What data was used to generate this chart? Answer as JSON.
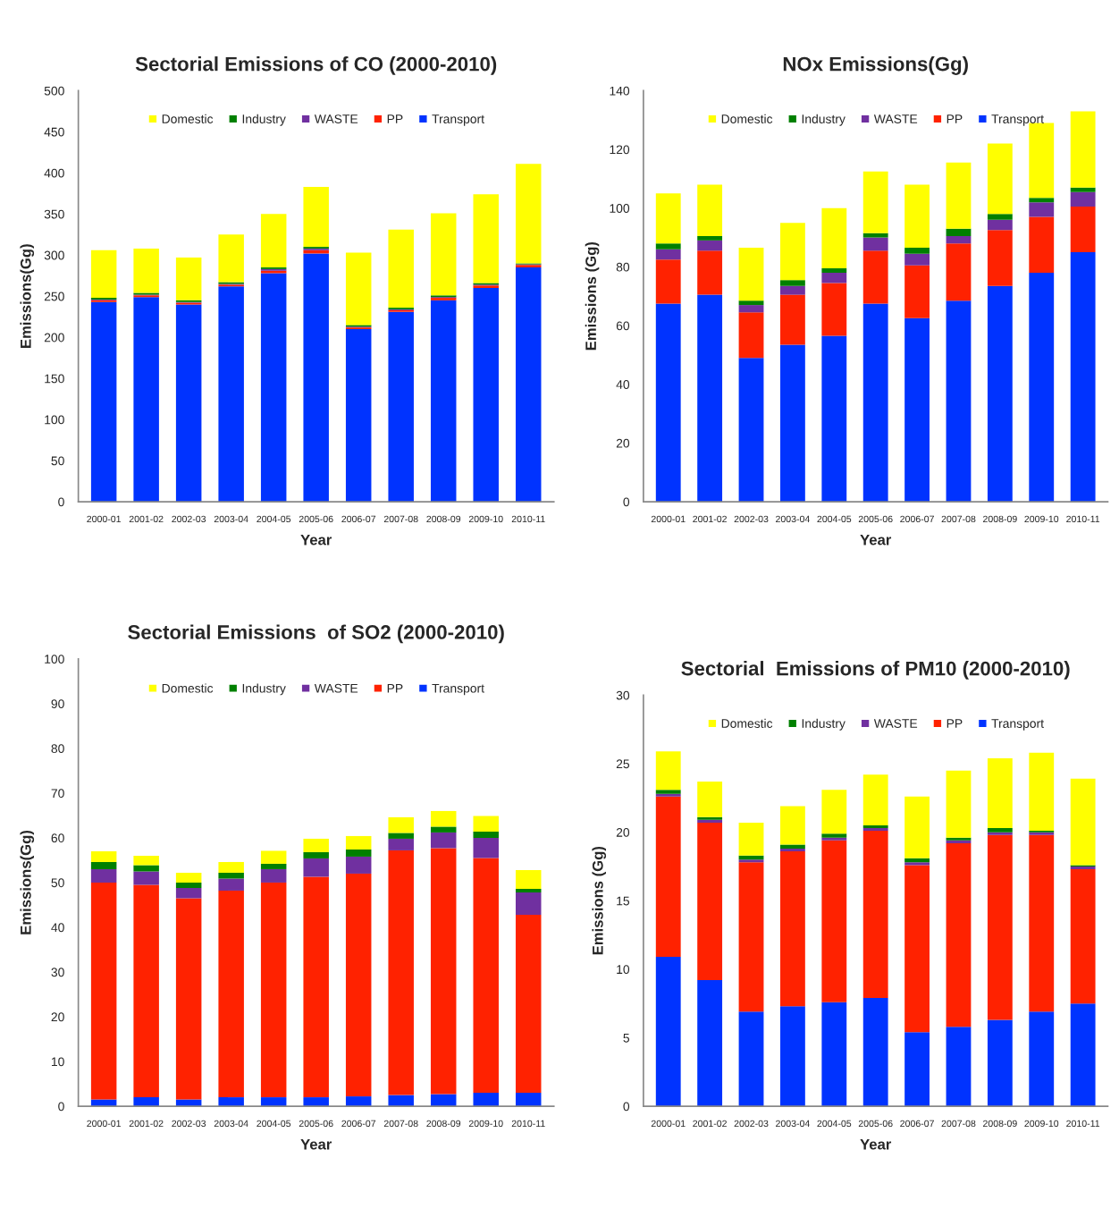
{
  "chart_data": [
    {
      "type": "bar",
      "title": "Sectorial Emissions of CO (2000-2010)",
      "xlabel": "Year",
      "ylabel": "Emissions(Gg)",
      "stacked": true,
      "legend": "top",
      "ylim": [
        0,
        500
      ],
      "yticks": [
        0,
        50,
        100,
        150,
        200,
        250,
        300,
        350,
        400,
        450,
        500
      ],
      "categories": [
        "2000-01",
        "2001-02",
        "2002-03",
        "2003-04",
        "2004-05",
        "2005-06",
        "2006-07",
        "2007-08",
        "2008-09",
        "2009-10",
        "2010-11"
      ],
      "series": [
        {
          "name": "Transport",
          "color": "#0033ff",
          "values": [
            243,
            249,
            240,
            262,
            278,
            302,
            210,
            231,
            245,
            260,
            285
          ]
        },
        {
          "name": "PP",
          "color": "#ff2200",
          "values": [
            2,
            2,
            2,
            2,
            3,
            4,
            2,
            2,
            3,
            3,
            3
          ]
        },
        {
          "name": "WASTE",
          "color": "#7030a0",
          "values": [
            1,
            1,
            1,
            1,
            2,
            2,
            1,
            1,
            1,
            1,
            1
          ]
        },
        {
          "name": "Industry",
          "color": "#008000",
          "values": [
            2,
            2,
            2,
            2,
            2,
            2,
            2,
            2,
            2,
            2,
            1
          ]
        },
        {
          "name": "Domestic",
          "color": "#ffff00",
          "values": [
            58,
            54,
            52,
            58,
            65,
            73,
            88,
            95,
            100,
            108,
            121
          ]
        }
      ]
    },
    {
      "type": "bar",
      "title": "NOx Emissions(Gg)",
      "xlabel": "Year",
      "ylabel": "Emissions (Gg)",
      "stacked": true,
      "legend": "top",
      "ylim": [
        0,
        140
      ],
      "yticks": [
        0,
        20,
        40,
        60,
        80,
        100,
        120,
        140
      ],
      "categories": [
        "2000-01",
        "2001-02",
        "2002-03",
        "2003-04",
        "2004-05",
        "2005-06",
        "2006-07",
        "2007-08",
        "2008-09",
        "2009-10",
        "2010-11"
      ],
      "series": [
        {
          "name": "Transport",
          "color": "#0033ff",
          "values": [
            67.5,
            70.5,
            49,
            53.5,
            56.5,
            67.5,
            62.5,
            68.5,
            73.5,
            78,
            85
          ]
        },
        {
          "name": "PP",
          "color": "#ff2200",
          "values": [
            15,
            15,
            15.5,
            17,
            18,
            18,
            18,
            19.5,
            19,
            19,
            15.5
          ]
        },
        {
          "name": "WASTE",
          "color": "#7030a0",
          "values": [
            3.5,
            3.5,
            2.5,
            3,
            3.5,
            4.5,
            4,
            2.5,
            3.5,
            5,
            5
          ]
        },
        {
          "name": "Industry",
          "color": "#008000",
          "values": [
            2,
            1.5,
            1.5,
            2,
            1.5,
            1.5,
            2,
            2.5,
            2,
            1.5,
            1.5
          ]
        },
        {
          "name": "Domestic",
          "color": "#ffff00",
          "values": [
            17,
            17.5,
            18,
            19.5,
            20.5,
            21,
            21.5,
            22.5,
            24,
            25.5,
            26
          ]
        }
      ]
    },
    {
      "type": "bar",
      "title": "Sectorial Emissions  of SO2 (2000-2010)",
      "xlabel": "Year",
      "ylabel": "Emissions(Gg)",
      "stacked": true,
      "legend": "top",
      "ylim": [
        0,
        100
      ],
      "yticks": [
        0,
        10,
        20,
        30,
        40,
        50,
        60,
        70,
        80,
        90,
        100
      ],
      "categories": [
        "2000-01",
        "2001-02",
        "2002-03",
        "2003-04",
        "2004-05",
        "2005-06",
        "2006-07",
        "2007-08",
        "2008-09",
        "2009-10",
        "2010-11"
      ],
      "series": [
        {
          "name": "Transport",
          "color": "#0033ff",
          "values": [
            1.5,
            2,
            1.5,
            2,
            2,
            2,
            2.2,
            2.5,
            2.7,
            3,
            3
          ]
        },
        {
          "name": "PP",
          "color": "#ff2200",
          "values": [
            48.5,
            47.5,
            45,
            46.2,
            48,
            49.3,
            49.8,
            54.7,
            55,
            52.5,
            39.8
          ]
        },
        {
          "name": "WASTE",
          "color": "#7030a0",
          "values": [
            3,
            3,
            2.3,
            2.7,
            3,
            4.1,
            3.8,
            2.6,
            3.5,
            4.5,
            5
          ]
        },
        {
          "name": "Industry",
          "color": "#008000",
          "values": [
            1.6,
            1.4,
            1.2,
            1.3,
            1.2,
            1.4,
            1.6,
            1.3,
            1.3,
            1.4,
            0.8
          ]
        },
        {
          "name": "Domestic",
          "color": "#ffff00",
          "values": [
            2.4,
            2.1,
            2.2,
            2.4,
            2.9,
            3,
            3,
            3.5,
            3.5,
            3.5,
            4.2
          ]
        }
      ]
    },
    {
      "type": "bar",
      "title": "Sectorial  Emissions of PM10 (2000-2010)",
      "xlabel": "Year",
      "ylabel": "Emissions (Gg)",
      "stacked": true,
      "legend": "top",
      "ylim": [
        0,
        30
      ],
      "yticks": [
        0,
        5,
        10,
        15,
        20,
        25,
        30
      ],
      "categories": [
        "2000-01",
        "2001-02",
        "2002-03",
        "2003-04",
        "2004-05",
        "2005-06",
        "2006-07",
        "2007-08",
        "2008-09",
        "2009-10",
        "2010-11"
      ],
      "series": [
        {
          "name": "Transport",
          "color": "#0033ff",
          "values": [
            10.9,
            9.2,
            6.9,
            7.3,
            7.6,
            7.9,
            5.4,
            5.8,
            6.3,
            6.9,
            7.5
          ]
        },
        {
          "name": "PP",
          "color": "#ff2200",
          "values": [
            11.7,
            11.5,
            10.9,
            11.3,
            11.8,
            12.2,
            12.2,
            13.4,
            13.5,
            12.9,
            9.8
          ]
        },
        {
          "name": "WASTE",
          "color": "#7030a0",
          "values": [
            0.2,
            0.2,
            0.2,
            0.2,
            0.2,
            0.2,
            0.2,
            0.2,
            0.2,
            0.2,
            0.2
          ]
        },
        {
          "name": "Industry",
          "color": "#008000",
          "values": [
            0.3,
            0.2,
            0.3,
            0.3,
            0.3,
            0.2,
            0.3,
            0.2,
            0.3,
            0.1,
            0.1
          ]
        },
        {
          "name": "Domestic",
          "color": "#ffff00",
          "values": [
            2.8,
            2.6,
            2.4,
            2.8,
            3.2,
            3.7,
            4.5,
            4.9,
            5.1,
            5.7,
            6.3
          ]
        }
      ]
    }
  ]
}
